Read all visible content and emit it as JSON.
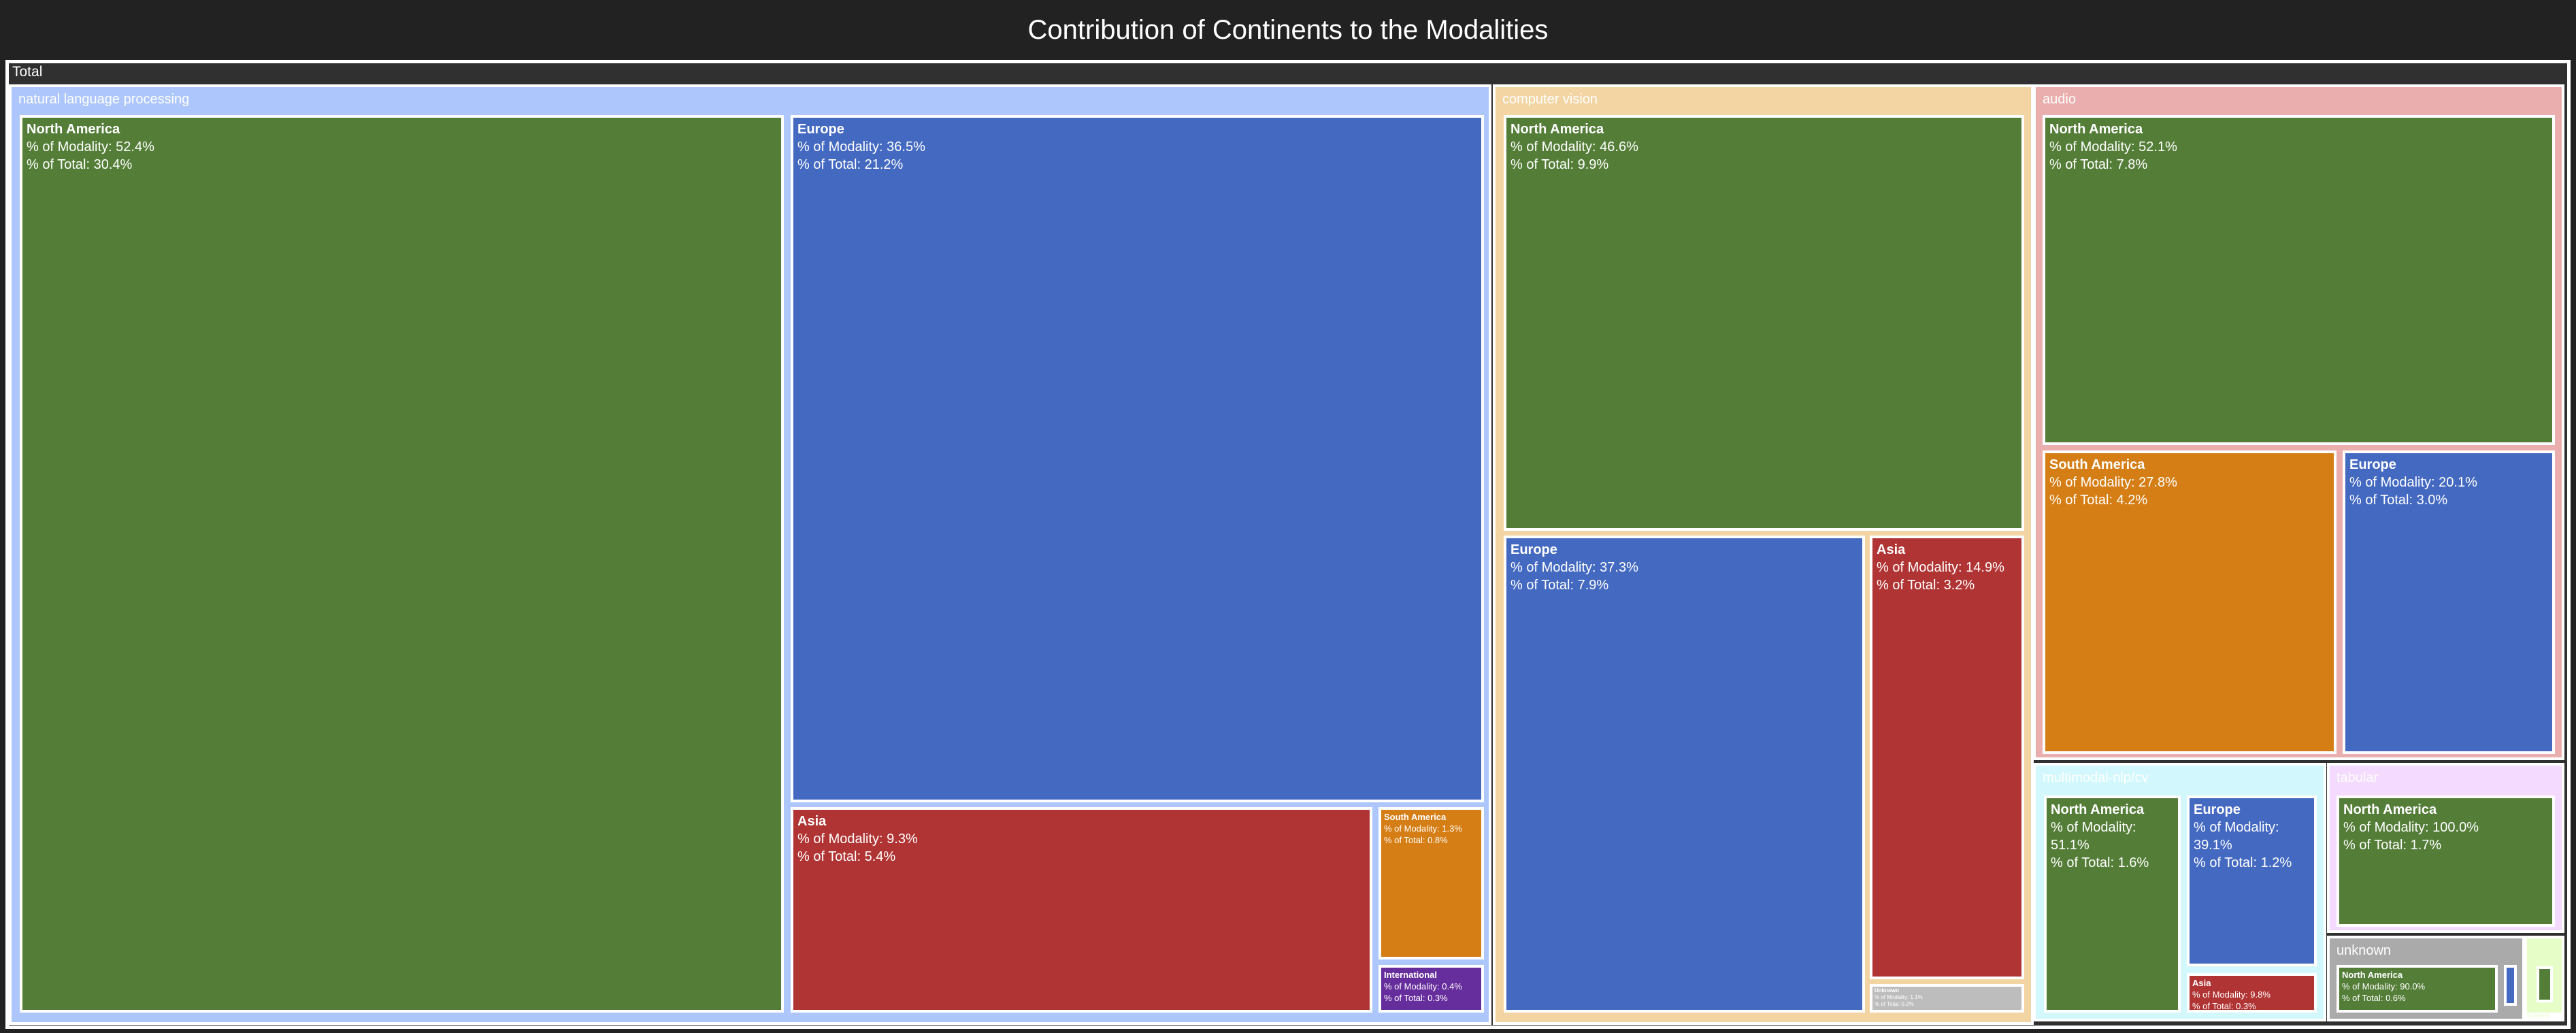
{
  "chart_data": {
    "type": "treemap",
    "title": "Contribution of Continents to the Modalities",
    "root_label": "Total",
    "colors": {
      "North America": "#547d38",
      "Europe": "#4469c0",
      "Asia": "#b03434",
      "South America": "#d57e15",
      "International": "#662d9c",
      "Unknown": "#bdbdbd"
    },
    "modalities": [
      {
        "name": "natural language processing",
        "color": "#adc6fc",
        "children": [
          {
            "name": "North America",
            "pct_modality": "52.4%",
            "pct_total": "30.4%"
          },
          {
            "name": "Europe",
            "pct_modality": "36.5%",
            "pct_total": "21.2%"
          },
          {
            "name": "Asia",
            "pct_modality": "9.3%",
            "pct_total": "5.4%"
          },
          {
            "name": "South America",
            "pct_modality": "1.3%",
            "pct_total": "0.8%"
          },
          {
            "name": "International",
            "pct_modality": "0.4%",
            "pct_total": "0.3%"
          }
        ]
      },
      {
        "name": "computer vision",
        "color": "#f2d5a3",
        "children": [
          {
            "name": "North America",
            "pct_modality": "46.6%",
            "pct_total": "9.9%"
          },
          {
            "name": "Europe",
            "pct_modality": "37.3%",
            "pct_total": "7.9%"
          },
          {
            "name": "Asia",
            "pct_modality": "14.9%",
            "pct_total": "3.2%"
          },
          {
            "name": "Unknown",
            "pct_modality": "1.1%",
            "pct_total": "0.2%"
          }
        ]
      },
      {
        "name": "audio",
        "color": "#ebaeae",
        "children": [
          {
            "name": "North America",
            "pct_modality": "52.1%",
            "pct_total": "7.8%"
          },
          {
            "name": "South America",
            "pct_modality": "27.8%",
            "pct_total": "4.2%"
          },
          {
            "name": "Europe",
            "pct_modality": "20.1%",
            "pct_total": "3.0%"
          }
        ]
      },
      {
        "name": "multimodal-nlp/cv",
        "color": "#d2f8fd",
        "children": [
          {
            "name": "North America",
            "pct_modality": "51.1%",
            "pct_total": "1.6%"
          },
          {
            "name": "Europe",
            "pct_modality": "39.1%",
            "pct_total": "1.2%"
          },
          {
            "name": "Asia",
            "pct_modality": "9.8%",
            "pct_total": "0.3%"
          }
        ]
      },
      {
        "name": "tabular",
        "color": "#f3dafe",
        "children": [
          {
            "name": "North America",
            "pct_modality": "100.0%",
            "pct_total": "1.7%"
          }
        ]
      },
      {
        "name": "unknown",
        "color": "#aaaaaa",
        "children": [
          {
            "name": "North America",
            "pct_modality": "90.0%",
            "pct_total": "0.6%"
          },
          {
            "name": "Europe",
            "pct_modality": "",
            "pct_total": ""
          }
        ]
      },
      {
        "name": "",
        "color": "#e7fdc8",
        "children": [
          {
            "name": "North America",
            "pct_modality": "",
            "pct_total": ""
          }
        ]
      }
    ],
    "labels": {
      "modality": "% of Modality: ",
      "total": "% of Total: "
    },
    "footer_label": "multimod"
  }
}
